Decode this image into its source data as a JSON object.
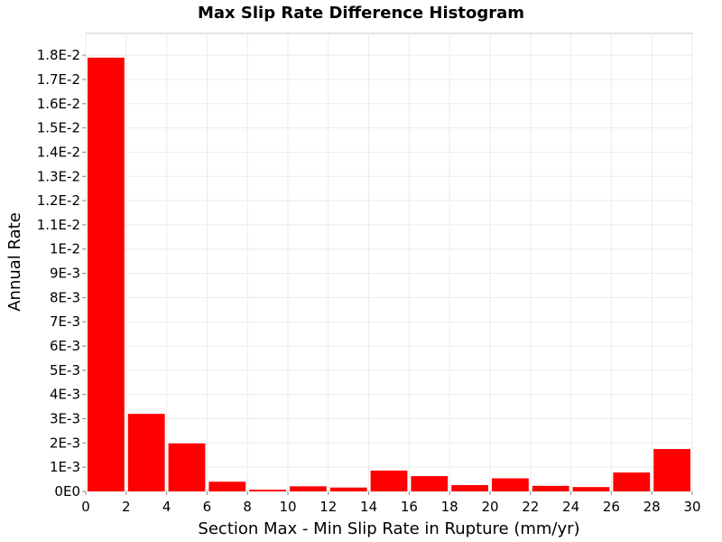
{
  "chart_data": {
    "type": "bar",
    "title": "Max Slip Rate Difference Histogram",
    "xlabel": "Section Max - Min Slip Rate in Rupture (mm/yr)",
    "ylabel": "Annual Rate",
    "xlim": [
      0,
      30
    ],
    "ylim": [
      0,
      0.0189
    ],
    "bin_width": 2,
    "x_ticks": [
      0,
      2,
      4,
      6,
      8,
      10,
      12,
      14,
      16,
      18,
      20,
      22,
      24,
      26,
      28,
      30
    ],
    "x_tick_labels": [
      "0",
      "2",
      "4",
      "6",
      "8",
      "10",
      "12",
      "14",
      "16",
      "18",
      "20",
      "22",
      "24",
      "26",
      "28",
      "30"
    ],
    "y_ticks": [
      0,
      0.001,
      0.002,
      0.003,
      0.004,
      0.005,
      0.006,
      0.007,
      0.008,
      0.009,
      0.01,
      0.011,
      0.012,
      0.013,
      0.014,
      0.015,
      0.016,
      0.017,
      0.018
    ],
    "y_tick_labels": [
      "0E0",
      "1E-3",
      "2E-3",
      "3E-3",
      "4E-3",
      "5E-3",
      "6E-3",
      "7E-3",
      "8E-3",
      "9E-3",
      "1E-2",
      "1.1E-2",
      "1.2E-2",
      "1.3E-2",
      "1.4E-2",
      "1.5E-2",
      "1.6E-2",
      "1.7E-2",
      "1.8E-2"
    ],
    "grid": true,
    "bar_color": "#ff0000",
    "bins": [
      {
        "x_start": 0,
        "value": 0.0179
      },
      {
        "x_start": 2,
        "value": 0.0032
      },
      {
        "x_start": 4,
        "value": 0.00198
      },
      {
        "x_start": 6,
        "value": 0.0004
      },
      {
        "x_start": 8,
        "value": 7e-05
      },
      {
        "x_start": 10,
        "value": 0.00021
      },
      {
        "x_start": 12,
        "value": 0.00016
      },
      {
        "x_start": 14,
        "value": 0.00086
      },
      {
        "x_start": 16,
        "value": 0.00063
      },
      {
        "x_start": 18,
        "value": 0.00026
      },
      {
        "x_start": 20,
        "value": 0.00054
      },
      {
        "x_start": 22,
        "value": 0.00023
      },
      {
        "x_start": 24,
        "value": 0.00018
      },
      {
        "x_start": 26,
        "value": 0.00078
      },
      {
        "x_start": 28,
        "value": 0.00175
      }
    ]
  }
}
